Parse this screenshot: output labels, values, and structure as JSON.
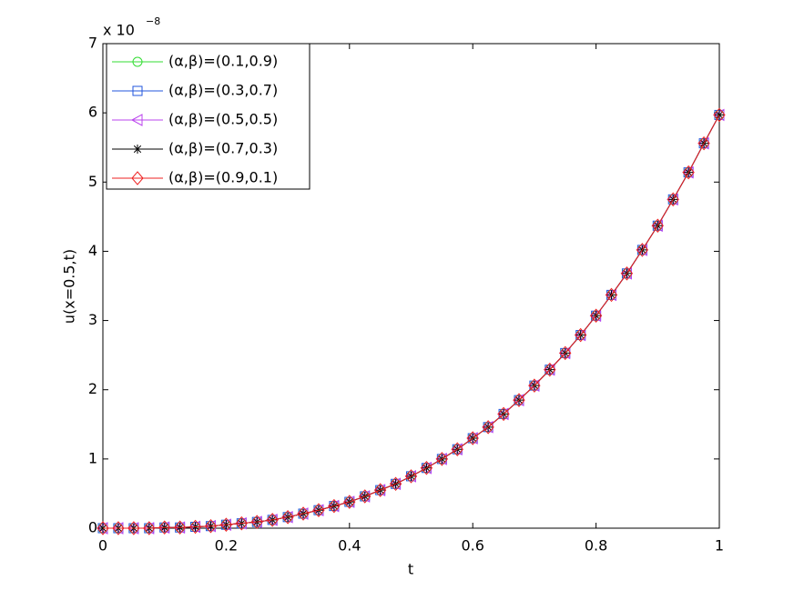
{
  "chart_data": {
    "type": "line",
    "xlabel": "t",
    "ylabel": "u(x=0.5,t)",
    "y_multiplier": {
      "base": "x 10",
      "exponent": "−8"
    },
    "xlim": [
      0,
      1
    ],
    "ylim": [
      0,
      7
    ],
    "xticks": [
      0,
      0.2,
      0.4,
      0.6,
      0.8,
      1
    ],
    "yticks": [
      0,
      1,
      2,
      3,
      4,
      5,
      6,
      7
    ],
    "grid": false,
    "legend": "upper left",
    "x": [
      0,
      0.025,
      0.05,
      0.075,
      0.1,
      0.125,
      0.15,
      0.175,
      0.2,
      0.225,
      0.25,
      0.275,
      0.3,
      0.325,
      0.35,
      0.375,
      0.4,
      0.425,
      0.45,
      0.475,
      0.5,
      0.525,
      0.55,
      0.575,
      0.6,
      0.625,
      0.65,
      0.675,
      0.7,
      0.725,
      0.75,
      0.775,
      0.8,
      0.825,
      0.85,
      0.875,
      0.9,
      0.925,
      0.95,
      0.975,
      1
    ],
    "series": [
      {
        "name": "(α,β)=(0.1,0.9)",
        "color": "#33dd33",
        "marker": "circle",
        "values": [
          0,
          0,
          0,
          0,
          0.01,
          0.01,
          0.02,
          0.03,
          0.05,
          0.07,
          0.09,
          0.12,
          0.16,
          0.21,
          0.26,
          0.32,
          0.38,
          0.46,
          0.55,
          0.64,
          0.75,
          0.87,
          1.0,
          1.14,
          1.3,
          1.46,
          1.65,
          1.85,
          2.06,
          2.29,
          2.53,
          2.79,
          3.07,
          3.37,
          3.68,
          4.02,
          4.37,
          4.75,
          5.14,
          5.56,
          5.97
        ]
      },
      {
        "name": "(α,β)=(0.3,0.7)",
        "color": "#2255dd",
        "marker": "square",
        "values": [
          0,
          0,
          0,
          0,
          0.01,
          0.01,
          0.02,
          0.03,
          0.05,
          0.07,
          0.09,
          0.12,
          0.16,
          0.21,
          0.26,
          0.32,
          0.38,
          0.46,
          0.55,
          0.64,
          0.75,
          0.87,
          1.0,
          1.14,
          1.3,
          1.46,
          1.65,
          1.85,
          2.06,
          2.29,
          2.53,
          2.79,
          3.07,
          3.37,
          3.68,
          4.02,
          4.37,
          4.75,
          5.14,
          5.56,
          5.97
        ]
      },
      {
        "name": "(α,β)=(0.5,0.5)",
        "color": "#bb44ee",
        "marker": "triangle-left",
        "values": [
          0,
          0,
          0,
          0,
          0.01,
          0.01,
          0.02,
          0.03,
          0.05,
          0.07,
          0.09,
          0.12,
          0.16,
          0.21,
          0.26,
          0.32,
          0.38,
          0.46,
          0.55,
          0.64,
          0.75,
          0.87,
          1.0,
          1.14,
          1.3,
          1.46,
          1.65,
          1.85,
          2.06,
          2.29,
          2.53,
          2.79,
          3.07,
          3.37,
          3.68,
          4.02,
          4.37,
          4.75,
          5.14,
          5.56,
          5.97
        ]
      },
      {
        "name": "(α,β)=(0.7,0.3)",
        "color": "#000000",
        "marker": "star",
        "values": [
          0,
          0,
          0,
          0,
          0.01,
          0.01,
          0.02,
          0.03,
          0.05,
          0.07,
          0.09,
          0.12,
          0.16,
          0.21,
          0.26,
          0.32,
          0.38,
          0.46,
          0.55,
          0.64,
          0.75,
          0.87,
          1.0,
          1.14,
          1.3,
          1.46,
          1.65,
          1.85,
          2.06,
          2.29,
          2.53,
          2.79,
          3.07,
          3.37,
          3.68,
          4.02,
          4.37,
          4.75,
          5.14,
          5.56,
          5.97
        ]
      },
      {
        "name": "(α,β)=(0.9,0.1)",
        "color": "#ee2222",
        "marker": "diamond",
        "values": [
          0,
          0,
          0,
          0,
          0.01,
          0.01,
          0.02,
          0.03,
          0.05,
          0.07,
          0.09,
          0.12,
          0.16,
          0.21,
          0.26,
          0.32,
          0.38,
          0.46,
          0.55,
          0.64,
          0.75,
          0.87,
          1.0,
          1.14,
          1.3,
          1.46,
          1.65,
          1.85,
          2.06,
          2.29,
          2.53,
          2.79,
          3.07,
          3.37,
          3.68,
          4.02,
          4.37,
          4.75,
          5.14,
          5.56,
          5.97
        ]
      }
    ]
  }
}
